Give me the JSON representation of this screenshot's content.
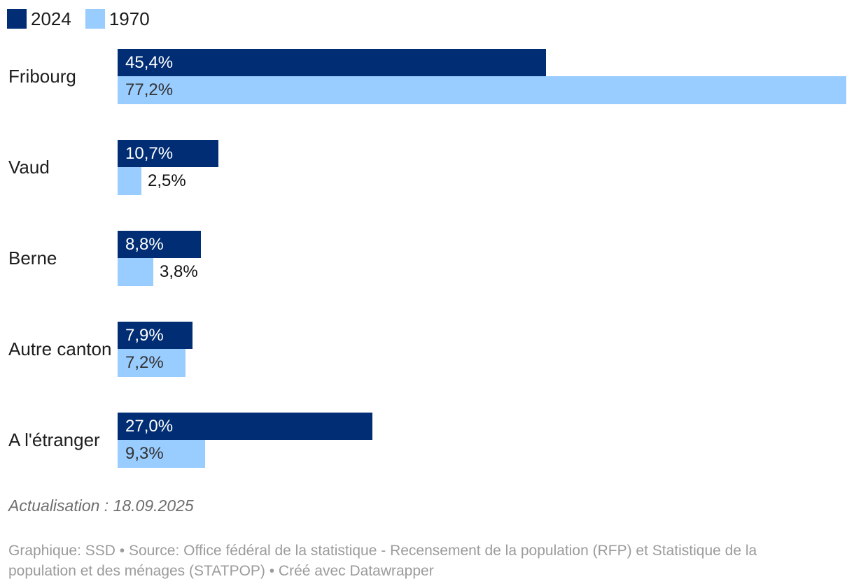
{
  "legend": {
    "items": [
      {
        "label": "2024",
        "color": "#002d73"
      },
      {
        "label": "1970",
        "color": "#99ccff"
      }
    ]
  },
  "chart_data": {
    "type": "bar",
    "orientation": "horizontal",
    "title": "",
    "categories": [
      "Fribourg",
      "Vaud",
      "Berne",
      "Autre canton",
      "A l'étranger"
    ],
    "series": [
      {
        "name": "2024",
        "color": "#002d73",
        "label_color": "#ffffff",
        "values": [
          45.4,
          10.7,
          8.8,
          7.9,
          27.0
        ],
        "value_labels": [
          "45,4%",
          "10,7%",
          "8,8%",
          "7,9%",
          "27,0%"
        ]
      },
      {
        "name": "1970",
        "color": "#99ccff",
        "label_color": "#333333",
        "values": [
          77.2,
          2.5,
          3.8,
          7.2,
          9.3
        ],
        "value_labels": [
          "77,2%",
          "2,5%",
          "3,8%",
          "7,2%",
          "9,3%"
        ]
      }
    ],
    "xlim": [
      0,
      77.2
    ],
    "value_suffix": "%",
    "grid": false,
    "legend_position": "top-left",
    "outside_label_color": "#111111"
  },
  "footer": {
    "updated": "Actualisation : 18.09.2025",
    "credits": "Graphique: SSD • Source: Office fédéral de la statistique - Recensement de la population (RFP) et Statistique de la population et des ménages (STATPOP) • Créé avec Datawrapper"
  }
}
